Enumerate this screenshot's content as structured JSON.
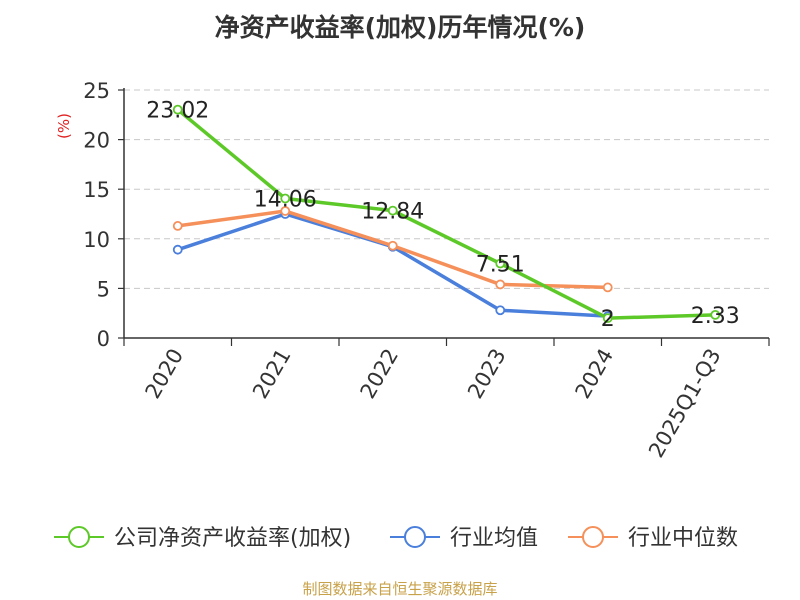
{
  "source_note": "制图数据来自恒生聚源数据库",
  "colors": {
    "company": "#5dc928",
    "avg": "#4a7fdc",
    "median": "#f5905a",
    "grid": "#c8c8c8",
    "axis": "#333333",
    "unit": "#e02020"
  },
  "chart_data": {
    "type": "line",
    "title": "净资产收益率(加权)历年情况(%)",
    "ylabel": "(%)",
    "xlabel": "",
    "ylim": [
      0,
      25
    ],
    "yticks": [
      0,
      5,
      10,
      15,
      20,
      25
    ],
    "grid": true,
    "legend_position": "bottom",
    "categories": [
      "2020",
      "2021",
      "2022",
      "2023",
      "2024",
      "2025Q1-Q3"
    ],
    "series": [
      {
        "name": "公司净资产收益率(加权)",
        "color": "#5dc928",
        "values": [
          23.02,
          14.06,
          12.84,
          7.51,
          2,
          2.33
        ],
        "labels": [
          "23.02",
          "14.06",
          "12.84",
          "7.51",
          "2",
          "2.33"
        ]
      },
      {
        "name": "行业均值",
        "color": "#4a7fdc",
        "values": [
          8.9,
          12.5,
          9.2,
          2.8,
          2.2,
          null
        ]
      },
      {
        "name": "行业中位数",
        "color": "#f5905a",
        "values": [
          11.3,
          12.8,
          9.3,
          5.4,
          5.1,
          null
        ]
      }
    ]
  }
}
